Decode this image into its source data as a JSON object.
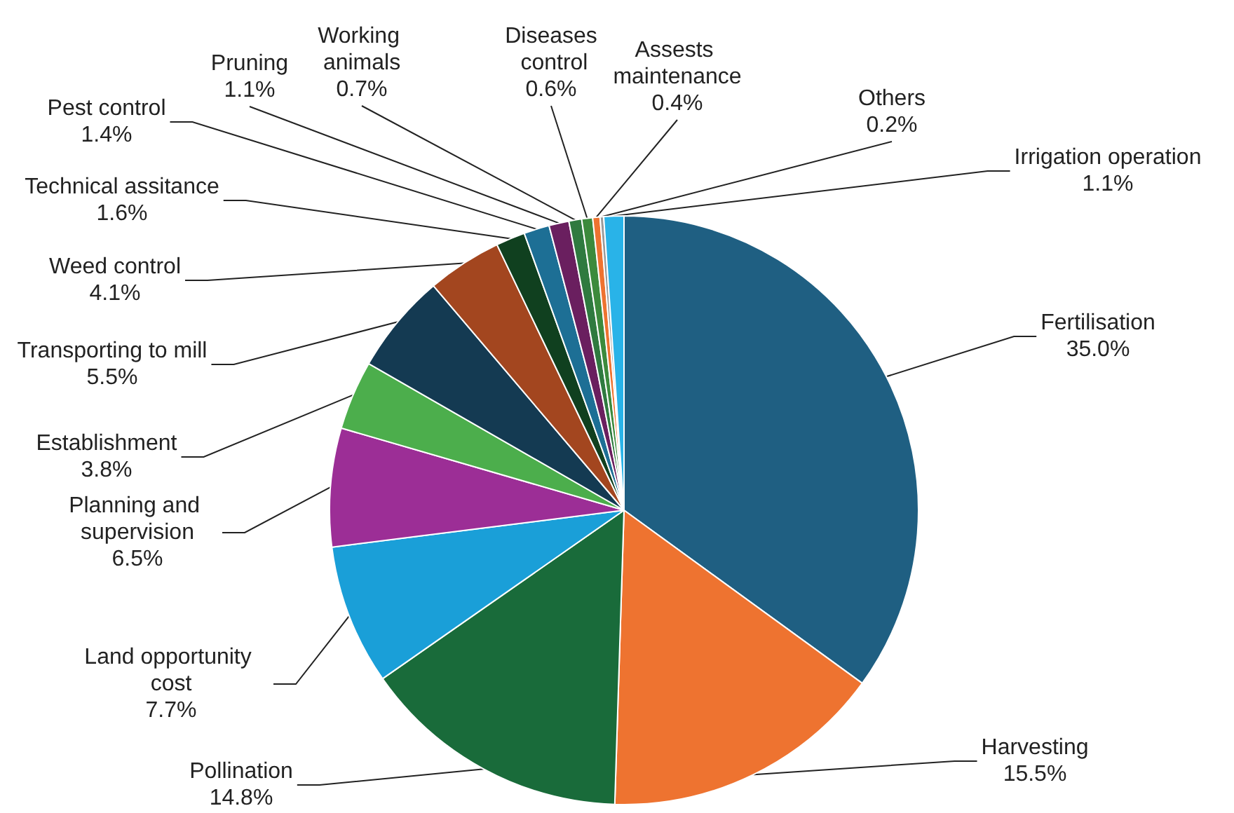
{
  "chart_data": {
    "type": "pie",
    "categories": [
      "Fertilisation",
      "Harvesting",
      "Pollination",
      "Land opportunity cost",
      "Planning and supervision",
      "Establishment",
      "Transporting to mill",
      "Weed control",
      "Technical assitance",
      "Pest control",
      "Pruning",
      "Working animals",
      "Diseases control",
      "Assests maintenance",
      "Others",
      "Irrigation operation"
    ],
    "values": [
      35.0,
      15.5,
      14.8,
      7.7,
      6.5,
      3.8,
      5.5,
      4.1,
      1.6,
      1.4,
      1.1,
      0.7,
      0.6,
      0.4,
      0.2,
      1.1
    ],
    "value_labels": [
      "35.0%",
      "15.5%",
      "14.8%",
      "7.7%",
      "6.5%",
      "3.8%",
      "5.5%",
      "4.1%",
      "1.6%",
      "1.4%",
      "1.1%",
      "0.7%",
      "0.6%",
      "0.4%",
      "0.2%",
      "1.1%"
    ],
    "colors": [
      "#1f5f82",
      "#ee7330",
      "#196b3a",
      "#1a9fd8",
      "#9c2e96",
      "#4cae4c",
      "#143a52",
      "#a3461f",
      "#10401f",
      "#1d6f95",
      "#6a1f5f",
      "#2f7a3f",
      "#3c8a3c",
      "#ee7330",
      "#9a9a9a",
      "#29b3e8"
    ],
    "legend": false
  }
}
